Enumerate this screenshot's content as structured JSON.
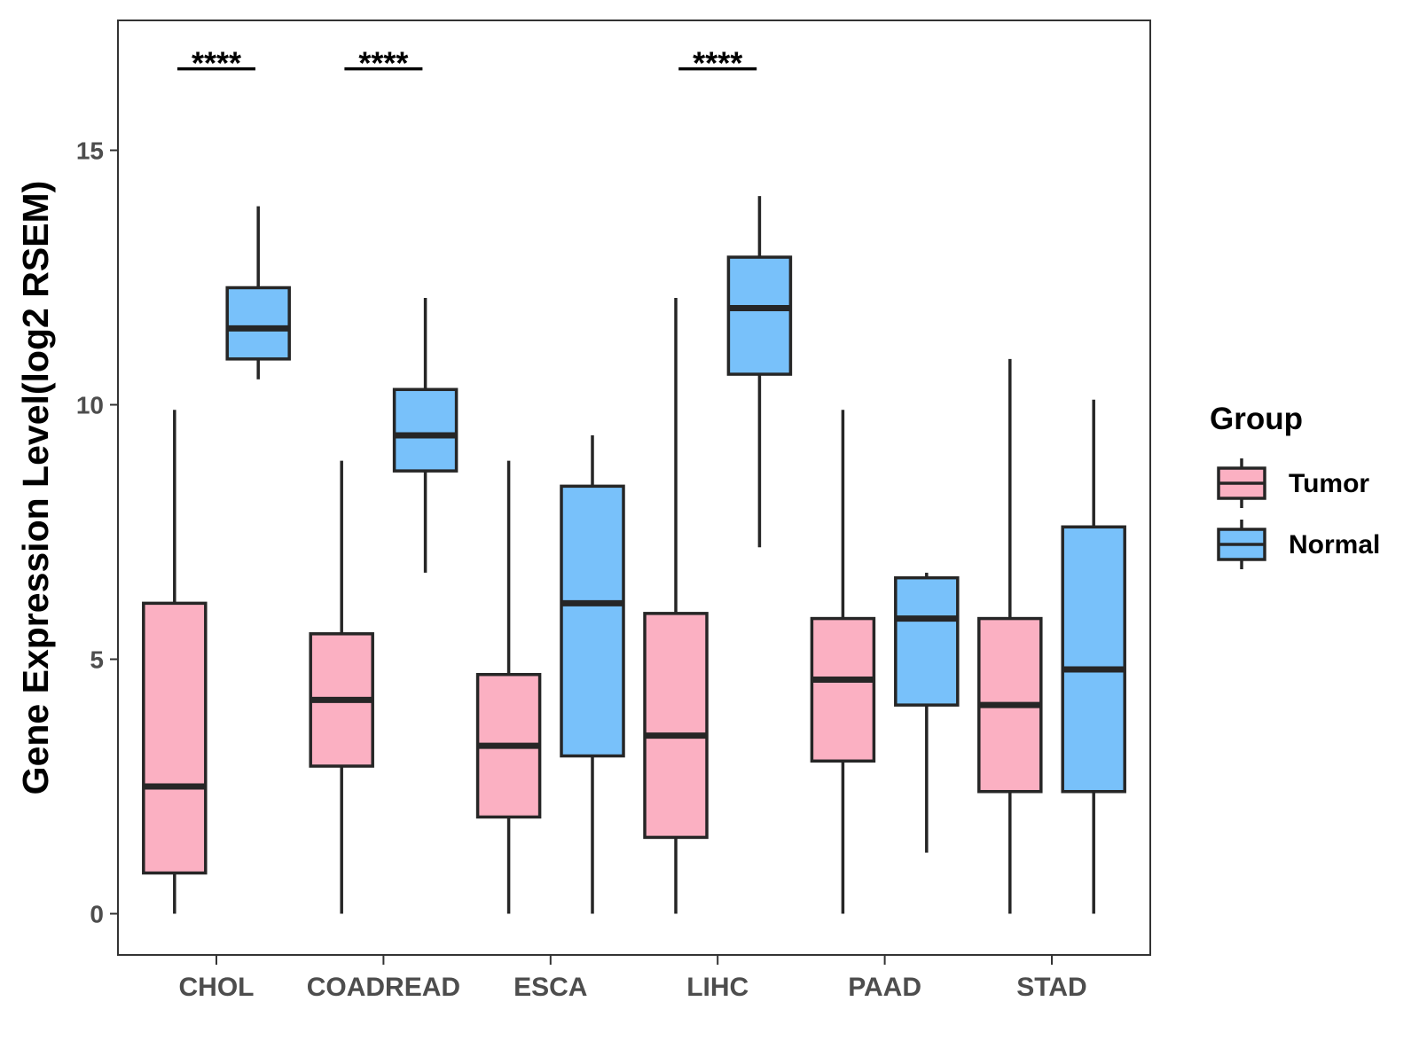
{
  "chart_data": {
    "type": "boxplot",
    "title": "",
    "xlabel": "",
    "ylabel": "Gene Expression Level(log2 RSEM)",
    "ylim": [
      -0.8,
      17.6
    ],
    "yticks": [
      0,
      5,
      10,
      15
    ],
    "categories": [
      "CHOL",
      "COADREAD",
      "ESCA",
      "LIHC",
      "PAAD",
      "STAD"
    ],
    "legend": {
      "title": "Group",
      "position": "right",
      "items": [
        {
          "label": "Tumor",
          "color": "#FBB0C2"
        },
        {
          "label": "Normal",
          "color": "#78C1FA"
        }
      ]
    },
    "series": [
      {
        "name": "Tumor",
        "color": "#FBB0C2",
        "boxes": [
          {
            "category": "CHOL",
            "min": 0.0,
            "q1": 0.8,
            "median": 2.5,
            "q3": 6.1,
            "max": 9.9
          },
          {
            "category": "COADREAD",
            "min": 0.0,
            "q1": 2.9,
            "median": 4.2,
            "q3": 5.5,
            "max": 8.9
          },
          {
            "category": "ESCA",
            "min": 0.0,
            "q1": 1.9,
            "median": 3.3,
            "q3": 4.7,
            "max": 8.9
          },
          {
            "category": "LIHC",
            "min": 0.0,
            "q1": 1.5,
            "median": 3.5,
            "q3": 5.9,
            "max": 12.1
          },
          {
            "category": "PAAD",
            "min": 0.0,
            "q1": 3.0,
            "median": 4.6,
            "q3": 5.8,
            "max": 9.9
          },
          {
            "category": "STAD",
            "min": 0.0,
            "q1": 2.4,
            "median": 4.1,
            "q3": 5.8,
            "max": 10.9
          }
        ]
      },
      {
        "name": "Normal",
        "color": "#78C1FA",
        "boxes": [
          {
            "category": "CHOL",
            "min": 10.5,
            "q1": 10.9,
            "median": 11.5,
            "q3": 12.3,
            "max": 13.9
          },
          {
            "category": "COADREAD",
            "min": 6.7,
            "q1": 8.7,
            "median": 9.4,
            "q3": 10.3,
            "max": 12.1
          },
          {
            "category": "ESCA",
            "min": 0.0,
            "q1": 3.1,
            "median": 6.1,
            "q3": 8.4,
            "max": 9.4
          },
          {
            "category": "LIHC",
            "min": 7.2,
            "q1": 10.6,
            "median": 11.9,
            "q3": 12.9,
            "max": 14.1
          },
          {
            "category": "PAAD",
            "min": 1.2,
            "q1": 4.1,
            "median": 5.8,
            "q3": 6.6,
            "max": 6.7
          },
          {
            "category": "STAD",
            "min": 0.0,
            "q1": 2.4,
            "median": 4.8,
            "q3": 7.6,
            "max": 10.1
          }
        ]
      }
    ],
    "significance": [
      {
        "category": "CHOL",
        "label": "****",
        "y": 16.6
      },
      {
        "category": "COADREAD",
        "label": "****",
        "y": 16.6
      },
      {
        "category": "LIHC",
        "label": "****",
        "y": 16.6
      }
    ]
  }
}
